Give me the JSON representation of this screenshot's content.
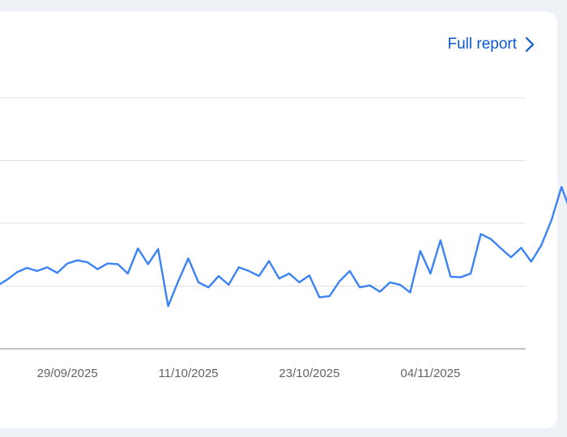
{
  "header": {
    "full_report_label": "Full report",
    "chevron_icon": "chevron-right-icon"
  },
  "colors": {
    "line": "#3b82f6",
    "link": "#0b57d0",
    "grid": "#e0e0e0",
    "axis": "#9e9e9e"
  },
  "chart_data": {
    "type": "line",
    "title": "",
    "xlabel": "",
    "ylabel": "",
    "x_ticks": [
      "29/09/2025",
      "11/10/2025",
      "23/10/2025",
      "04/11/2025"
    ],
    "x_tick_indices": [
      7,
      19,
      31,
      43
    ],
    "grid": true,
    "ylim": [
      0,
      4
    ],
    "series": [
      {
        "values": [
          1.0,
          1.1,
          1.22,
          1.29,
          1.24,
          1.3,
          1.21,
          1.36,
          1.41,
          1.38,
          1.27,
          1.36,
          1.35,
          1.2,
          1.6,
          1.35,
          1.59,
          0.68,
          1.08,
          1.44,
          1.06,
          0.98,
          1.16,
          1.02,
          1.3,
          1.24,
          1.16,
          1.4,
          1.12,
          1.2,
          1.06,
          1.17,
          0.82,
          0.84,
          1.08,
          1.24,
          0.98,
          1.01,
          0.91,
          1.06,
          1.02,
          0.9,
          1.56,
          1.2,
          1.73,
          1.15,
          1.14,
          1.2,
          1.83,
          1.75,
          1.6,
          1.46,
          1.61,
          1.39,
          1.65,
          2.05,
          2.58,
          2.15
        ]
      }
    ]
  }
}
